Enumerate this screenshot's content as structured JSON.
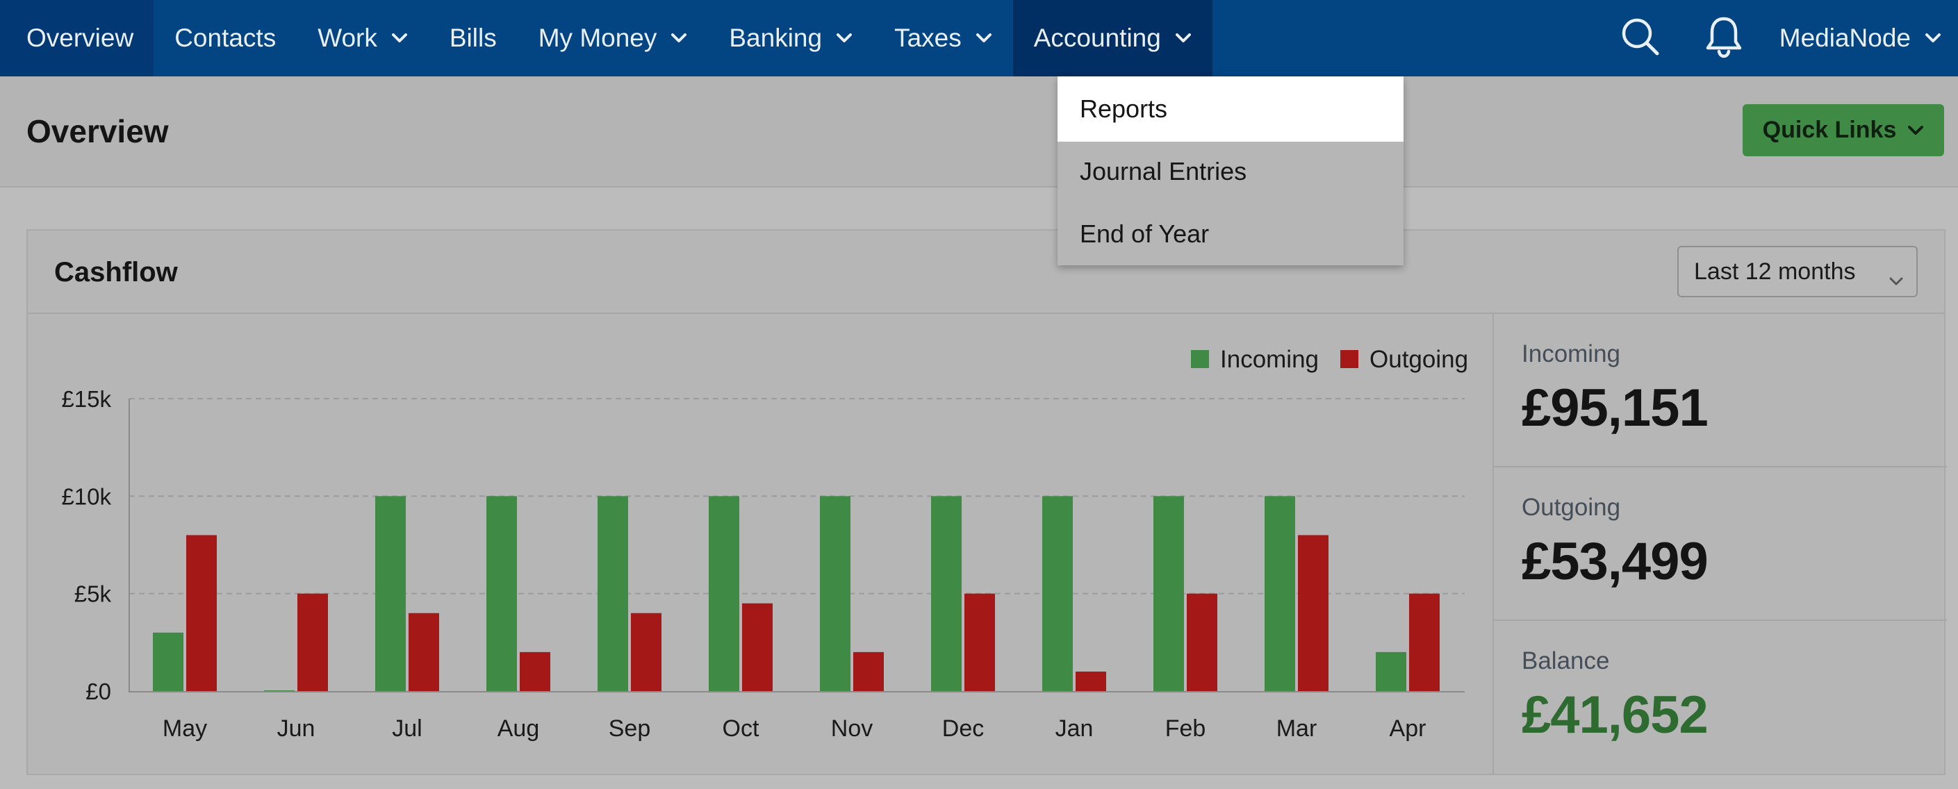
{
  "nav": {
    "items": [
      {
        "label": "Overview",
        "has_menu": false
      },
      {
        "label": "Contacts",
        "has_menu": false
      },
      {
        "label": "Work",
        "has_menu": true
      },
      {
        "label": "Bills",
        "has_menu": false
      },
      {
        "label": "My Money",
        "has_menu": true
      },
      {
        "label": "Banking",
        "has_menu": true
      },
      {
        "label": "Taxes",
        "has_menu": true
      },
      {
        "label": "Accounting",
        "has_menu": true
      }
    ],
    "user": "MediaNode",
    "icons": [
      "search-icon",
      "bell-icon"
    ]
  },
  "accounting_menu": {
    "items": [
      "Reports",
      "Journal Entries",
      "End of Year"
    ],
    "highlighted": "Reports"
  },
  "page": {
    "title": "Overview",
    "quick_links": "Quick Links"
  },
  "cashflow": {
    "title": "Cashflow",
    "period": "Last 12 months",
    "stats": {
      "incoming_label": "Incoming",
      "incoming_value": "£95,151",
      "outgoing_label": "Outgoing",
      "outgoing_value": "£53,499",
      "balance_label": "Balance",
      "balance_value": "£41,652"
    }
  },
  "colors": {
    "nav_bg": "#034483",
    "incoming": "#3f8a45",
    "outgoing": "#a51818",
    "balance": "#2d6b30"
  },
  "chart_data": {
    "type": "bar",
    "categories": [
      "May",
      "Jun",
      "Jul",
      "Aug",
      "Sep",
      "Oct",
      "Nov",
      "Dec",
      "Jan",
      "Feb",
      "Mar",
      "Apr"
    ],
    "series": [
      {
        "name": "Incoming",
        "values": [
          3000,
          0,
          10000,
          10000,
          10000,
          10000,
          10000,
          10000,
          10000,
          10000,
          10000,
          2000
        ]
      },
      {
        "name": "Outgoing",
        "values": [
          8000,
          5000,
          4000,
          2000,
          4000,
          4500,
          2000,
          5000,
          1000,
          5000,
          8000,
          5000
        ]
      }
    ],
    "ylim": [
      0,
      15000
    ],
    "yticks": [
      0,
      5000,
      10000,
      15000
    ],
    "ytick_labels": [
      "£0",
      "£5k",
      "£10k",
      "£15k"
    ],
    "grid": true,
    "legend": "top-right"
  }
}
